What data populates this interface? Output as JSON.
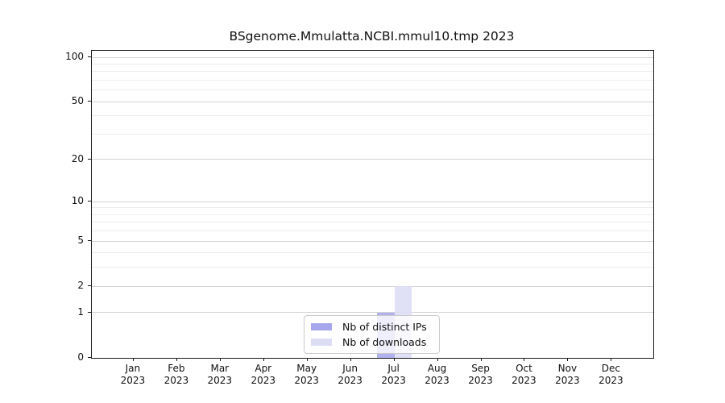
{
  "chart_data": {
    "type": "bar",
    "title": "BSgenome.Mmulatta.NCBI.mmul10.tmp 2023",
    "categories": [
      "Jan",
      "Feb",
      "Mar",
      "Apr",
      "May",
      "Jun",
      "Jul",
      "Aug",
      "Sep",
      "Oct",
      "Nov",
      "Dec"
    ],
    "x_year": "2023",
    "series": [
      {
        "name": "Nb of distinct IPs",
        "color": "#a6a6ee",
        "values": [
          0,
          0,
          0,
          0,
          0,
          0,
          1,
          0,
          0,
          0,
          0,
          0
        ]
      },
      {
        "name": "Nb of downloads",
        "color": "#dcdcf5",
        "values": [
          0,
          0,
          0,
          0,
          0,
          0,
          2,
          0,
          0,
          0,
          0,
          0
        ]
      }
    ],
    "y_scale": "log1p",
    "ylim": [
      0,
      100
    ],
    "y_major_ticks": [
      0,
      1,
      2,
      5,
      10,
      20,
      50,
      100
    ],
    "y_minor_gridlines": [
      3,
      4,
      6,
      7,
      8,
      9,
      30,
      40,
      60,
      70,
      80,
      90
    ],
    "grid": "horizontal",
    "legend_position": "bottom-center",
    "colors": {
      "axis": "#1a1a1a",
      "major_grid": "#d4d4d4",
      "minor_grid": "#ededed",
      "background": "#ffffff"
    }
  }
}
